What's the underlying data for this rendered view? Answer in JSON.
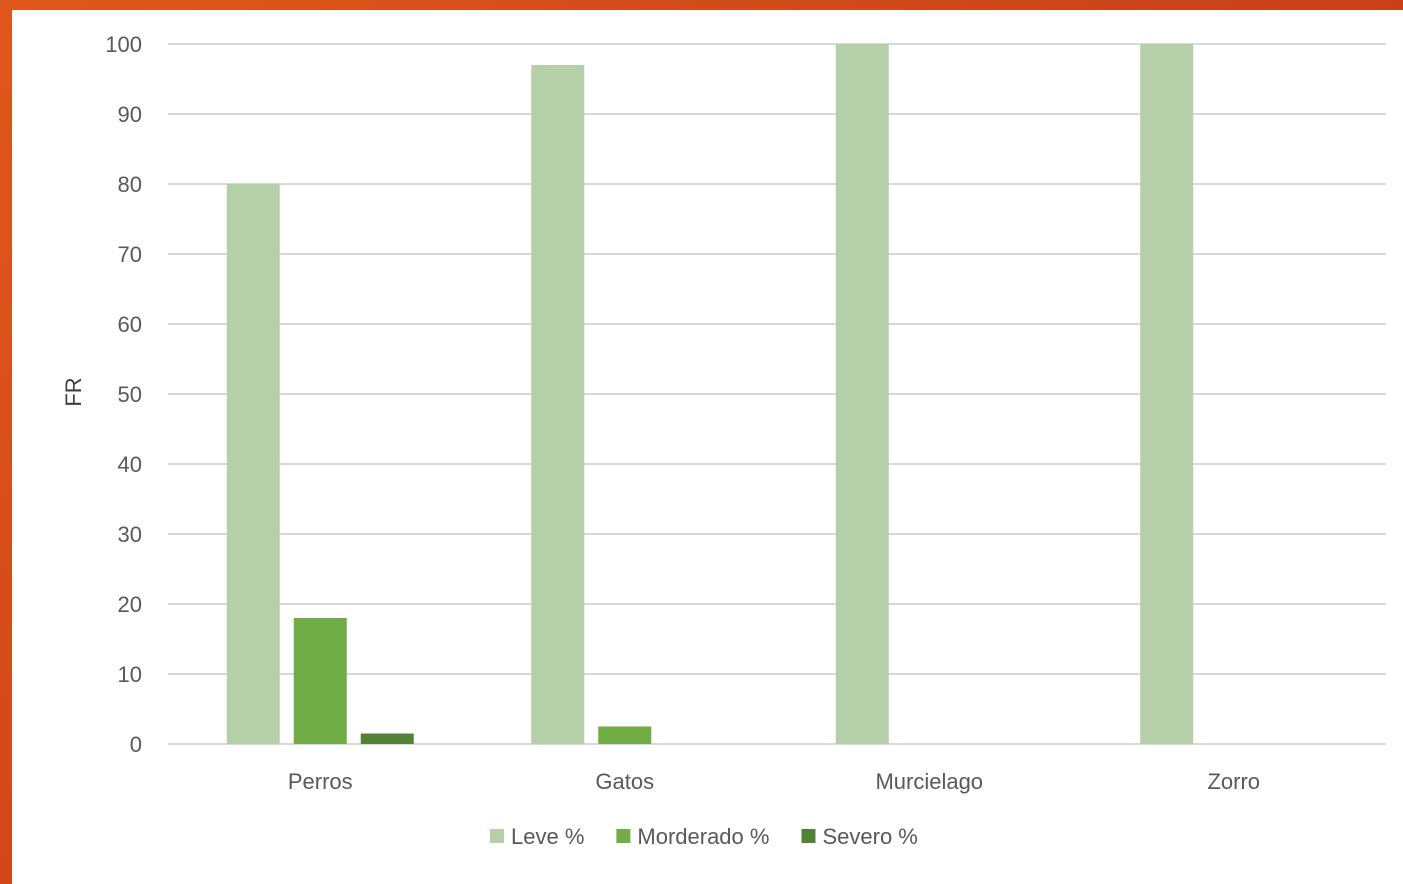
{
  "chart_data": {
    "type": "bar",
    "title": "",
    "xlabel": "",
    "ylabel": "FR",
    "ylim": [
      0,
      100
    ],
    "yticks": [
      0,
      10,
      20,
      30,
      40,
      50,
      60,
      70,
      80,
      90,
      100
    ],
    "grid": true,
    "legend_position": "bottom",
    "categories": [
      "Perros",
      "Gatos",
      "Murcielago",
      "Zorro"
    ],
    "series": [
      {
        "name": "Leve %",
        "color": "#b5cfa8",
        "values": [
          80,
          97,
          100,
          100
        ]
      },
      {
        "name": "Morderado %",
        "color": "#70ad47",
        "values": [
          18,
          2.5,
          0,
          0
        ]
      },
      {
        "name": "Severo %",
        "color": "#548235",
        "values": [
          1.5,
          0,
          0,
          0
        ]
      }
    ]
  },
  "colors": {
    "background_frame": "#d24a1a",
    "plot_background": "#ffffff",
    "gridline": "#d9d9d9"
  }
}
